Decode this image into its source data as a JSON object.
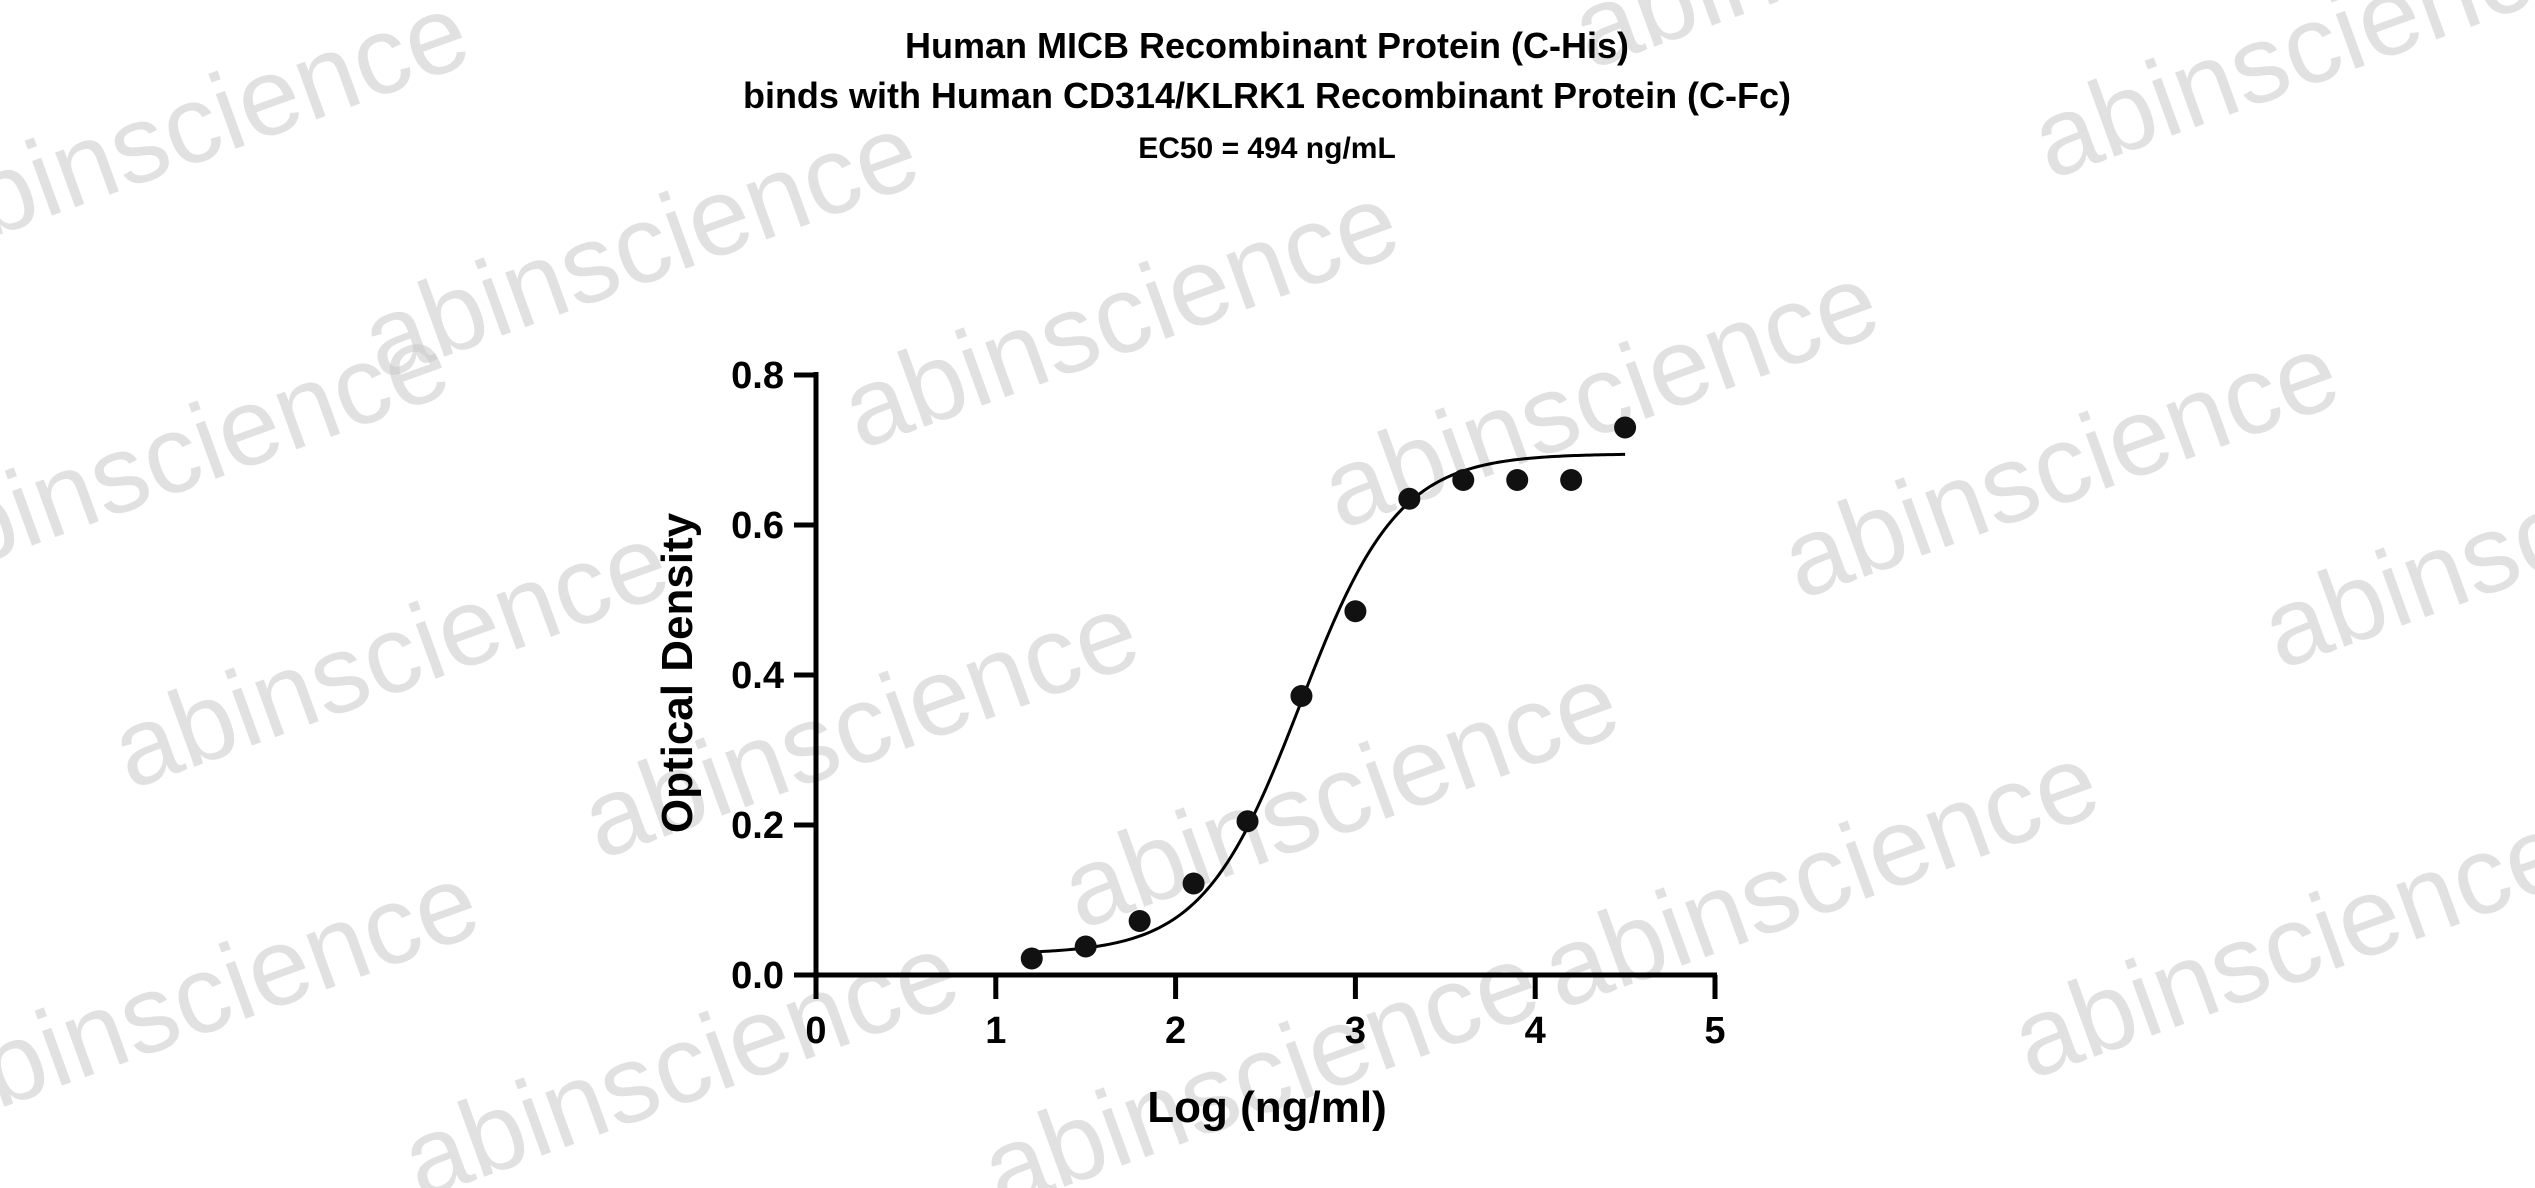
{
  "watermark": "abinscience",
  "chart_data": {
    "type": "scatter",
    "title": "Human MICB Recombinant Protein (C-His)",
    "title_line2": "binds with Human CD314/KLRK1 Recombinant Protein (C-Fc)",
    "subtitle": "EC50 = 494 ng/mL",
    "xlabel": "Log (ng/ml)",
    "ylabel": "Optical Density",
    "xlim": [
      0,
      5
    ],
    "ylim": [
      0,
      0.8
    ],
    "x_ticks": [
      "0",
      "1",
      "2",
      "3",
      "4",
      "5"
    ],
    "y_ticks": [
      "0.0",
      "0.2",
      "0.4",
      "0.6",
      "0.8"
    ],
    "grid": false,
    "points": {
      "x": [
        1.2,
        1.5,
        1.8,
        2.1,
        2.4,
        2.7,
        3.0,
        3.3,
        3.6,
        3.9,
        4.2,
        4.5
      ],
      "y": [
        0.022,
        0.038,
        0.072,
        0.122,
        0.205,
        0.372,
        0.485,
        0.635,
        0.66,
        0.66,
        0.66,
        0.73
      ]
    },
    "fit_curve": {
      "model": "4PL",
      "bottom": 0.028,
      "top": 0.695,
      "log_ec50": 2.694,
      "hill": 1.6,
      "x_range": [
        1.2,
        4.5
      ]
    }
  }
}
